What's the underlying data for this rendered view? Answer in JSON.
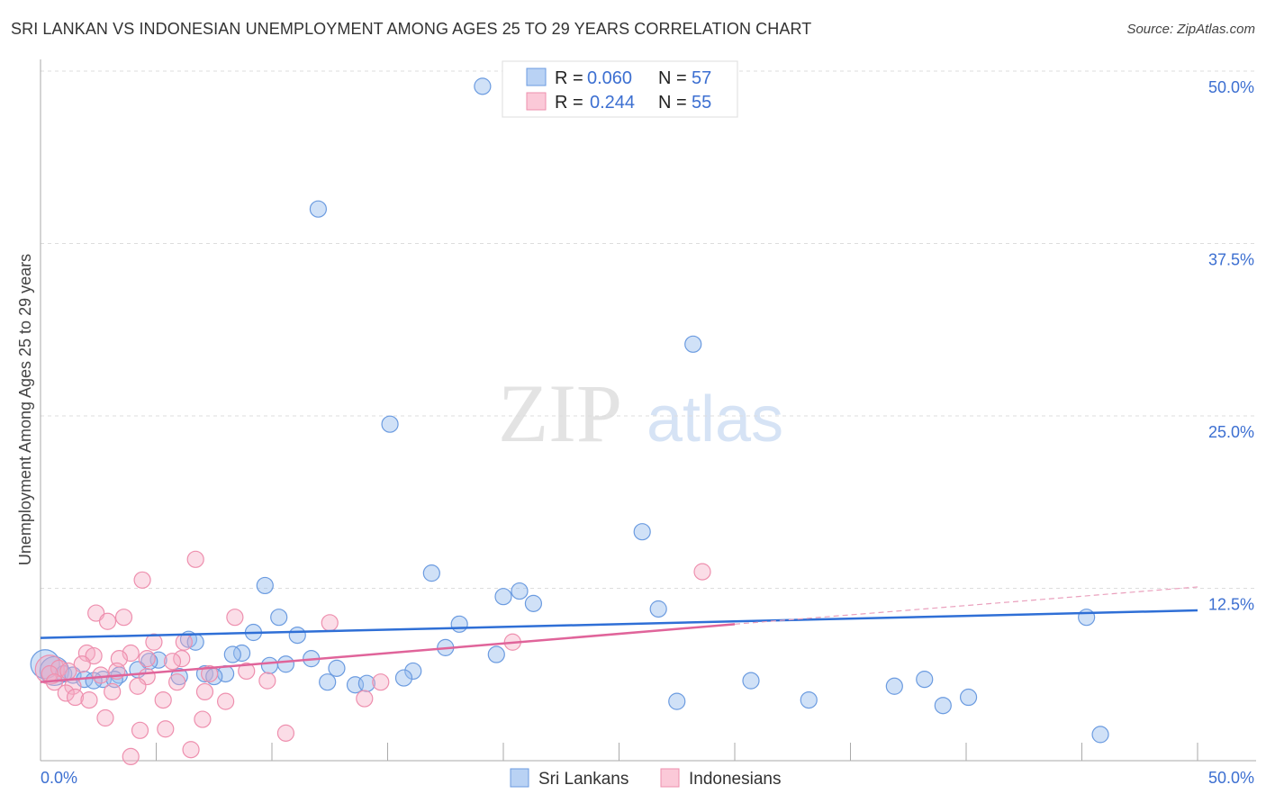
{
  "title": "SRI LANKAN VS INDONESIAN UNEMPLOYMENT AMONG AGES 25 TO 29 YEARS CORRELATION CHART",
  "source": "Source: ZipAtlas.com",
  "watermark": "ZIPatlas",
  "chart_data": {
    "type": "scatter",
    "title": "SRI LANKAN VS INDONESIAN UNEMPLOYMENT AMONG AGES 25 TO 29 YEARS CORRELATION CHART",
    "xlabel": "",
    "ylabel": "Unemployment Among Ages 25 to 29 years",
    "xlim": [
      0,
      50
    ],
    "ylim": [
      0,
      50
    ],
    "x_tick_labels": [
      "0.0%",
      "50.0%"
    ],
    "y_ticks": [
      12.5,
      25,
      37.5,
      50
    ],
    "y_tick_labels": [
      "12.5%",
      "25.0%",
      "37.5%",
      "50.0%"
    ],
    "grid": true,
    "legend_placement": "top-center",
    "series": [
      {
        "name": "Sri Lankans",
        "color": "#6b9be0",
        "R": "0.060",
        "N": "57",
        "trend": {
          "x": [
            0,
            50
          ],
          "y": [
            8.9,
            10.9
          ]
        },
        "points": [
          [
            19.1,
            48.9
          ],
          [
            12.0,
            40.0
          ],
          [
            28.2,
            30.2
          ],
          [
            15.1,
            24.4
          ],
          [
            26.0,
            16.6
          ],
          [
            16.9,
            13.6
          ],
          [
            9.7,
            12.7
          ],
          [
            20.7,
            12.3
          ],
          [
            20.0,
            11.9
          ],
          [
            21.3,
            11.4
          ],
          [
            26.7,
            11.0
          ],
          [
            10.3,
            10.4
          ],
          [
            45.2,
            10.4
          ],
          [
            18.1,
            9.9
          ],
          [
            9.2,
            9.3
          ],
          [
            11.1,
            9.1
          ],
          [
            6.4,
            8.8
          ],
          [
            6.7,
            8.6
          ],
          [
            17.5,
            8.2
          ],
          [
            8.7,
            7.8
          ],
          [
            8.3,
            7.7
          ],
          [
            19.7,
            7.7
          ],
          [
            11.7,
            7.4
          ],
          [
            5.1,
            7.3
          ],
          [
            4.7,
            7.2
          ],
          [
            10.6,
            7.0
          ],
          [
            9.9,
            6.9
          ],
          [
            12.8,
            6.7
          ],
          [
            4.2,
            6.6
          ],
          [
            16.1,
            6.5
          ],
          [
            7.1,
            6.3
          ],
          [
            8.0,
            6.3
          ],
          [
            1.0,
            6.3
          ],
          [
            1.4,
            6.2
          ],
          [
            3.4,
            6.2
          ],
          [
            6.0,
            6.1
          ],
          [
            7.5,
            6.1
          ],
          [
            1.9,
            5.9
          ],
          [
            2.7,
            5.9
          ],
          [
            15.7,
            6.0
          ],
          [
            38.2,
            5.9
          ],
          [
            2.3,
            5.8
          ],
          [
            3.2,
            5.9
          ],
          [
            12.4,
            5.7
          ],
          [
            30.7,
            5.8
          ],
          [
            13.6,
            5.5
          ],
          [
            14.1,
            5.6
          ],
          [
            36.9,
            5.4
          ],
          [
            40.1,
            4.6
          ],
          [
            33.2,
            4.4
          ],
          [
            27.5,
            4.3
          ],
          [
            39.0,
            4.0
          ],
          [
            45.8,
            1.9
          ]
        ],
        "large_points": [
          [
            0.2,
            7.0
          ],
          [
            0.6,
            6.5
          ]
        ]
      },
      {
        "name": "Indonesians",
        "color": "#ee8fae",
        "R": "0.244",
        "N": "55",
        "trend": {
          "x": [
            0,
            30
          ],
          "y": [
            5.7,
            9.9
          ]
        },
        "trend_extension": {
          "x": [
            30,
            50
          ],
          "y": [
            9.9,
            12.6
          ]
        },
        "points": [
          [
            6.7,
            14.6
          ],
          [
            4.4,
            13.1
          ],
          [
            28.6,
            13.7
          ],
          [
            2.4,
            10.7
          ],
          [
            3.6,
            10.4
          ],
          [
            2.9,
            10.1
          ],
          [
            8.4,
            10.4
          ],
          [
            12.5,
            10.0
          ],
          [
            20.4,
            8.6
          ],
          [
            4.9,
            8.6
          ],
          [
            6.2,
            8.6
          ],
          [
            2.0,
            7.8
          ],
          [
            2.3,
            7.6
          ],
          [
            3.9,
            7.8
          ],
          [
            3.4,
            7.4
          ],
          [
            4.6,
            7.4
          ],
          [
            6.1,
            7.4
          ],
          [
            5.7,
            7.2
          ],
          [
            1.8,
            7.0
          ],
          [
            0.8,
            6.7
          ],
          [
            1.2,
            6.5
          ],
          [
            0.4,
            6.3
          ],
          [
            3.3,
            6.5
          ],
          [
            2.6,
            6.2
          ],
          [
            8.9,
            6.5
          ],
          [
            7.3,
            6.3
          ],
          [
            4.6,
            6.1
          ],
          [
            0.6,
            5.7
          ],
          [
            9.8,
            5.8
          ],
          [
            5.9,
            5.7
          ],
          [
            14.7,
            5.7
          ],
          [
            4.2,
            5.4
          ],
          [
            1.4,
            5.4
          ],
          [
            7.1,
            5.0
          ],
          [
            3.1,
            5.0
          ],
          [
            1.1,
            4.9
          ],
          [
            1.5,
            4.6
          ],
          [
            5.3,
            4.4
          ],
          [
            2.1,
            4.4
          ],
          [
            14.0,
            4.5
          ],
          [
            8.0,
            4.3
          ],
          [
            2.8,
            3.1
          ],
          [
            7.0,
            3.0
          ],
          [
            4.3,
            2.2
          ],
          [
            5.4,
            2.3
          ],
          [
            10.6,
            2.0
          ],
          [
            6.5,
            0.8
          ],
          [
            3.9,
            0.3
          ]
        ],
        "large_points": [
          [
            0.4,
            6.6
          ]
        ]
      }
    ]
  },
  "legend": {
    "r_label": "R =",
    "n_label": "N ="
  }
}
